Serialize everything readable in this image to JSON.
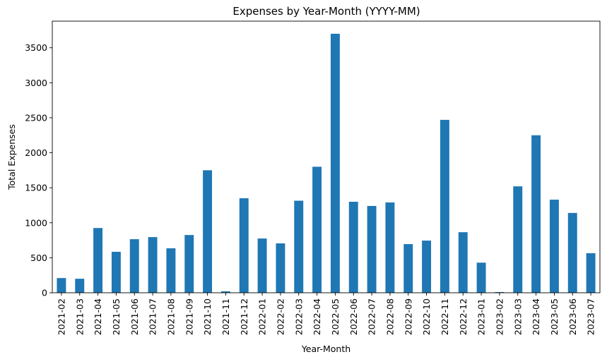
{
  "chart_data": {
    "type": "bar",
    "title": "Expenses by Year-Month (YYYY-MM)",
    "xlabel": "Year-Month",
    "ylabel": "Total Expenses",
    "categories": [
      "2021-02",
      "2021-03",
      "2021-04",
      "2021-05",
      "2021-06",
      "2021-07",
      "2021-08",
      "2021-09",
      "2021-10",
      "2021-11",
      "2021-12",
      "2022-01",
      "2022-02",
      "2022-03",
      "2022-04",
      "2022-05",
      "2022-06",
      "2022-07",
      "2022-08",
      "2022-09",
      "2022-10",
      "2022-11",
      "2022-12",
      "2023-01",
      "2023-02",
      "2023-03",
      "2023-04",
      "2023-05",
      "2023-06",
      "2023-07"
    ],
    "values": [
      210,
      200,
      925,
      585,
      765,
      795,
      635,
      825,
      1750,
      20,
      1350,
      775,
      705,
      1315,
      1800,
      3700,
      1300,
      1240,
      1290,
      695,
      745,
      2470,
      865,
      430,
      10,
      1520,
      2250,
      1330,
      1140,
      565
    ],
    "ylim": [
      0,
      3880
    ],
    "yticks": [
      0,
      500,
      1000,
      1500,
      2000,
      2500,
      3000,
      3500
    ],
    "bar_color": "#1f77b4",
    "grid": false,
    "legend": "none"
  }
}
